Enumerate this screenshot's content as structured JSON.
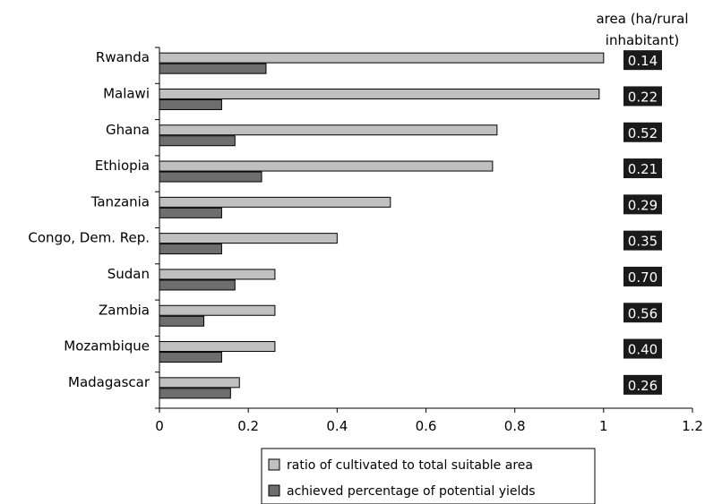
{
  "chart_data": {
    "type": "bar",
    "orientation": "horizontal",
    "categories": [
      "Rwanda",
      "Malawi",
      "Ghana",
      "Ethiopia",
      "Tanzania",
      "Congo, Dem. Rep.",
      "Sudan",
      "Zambia",
      "Mozambique",
      "Madagascar"
    ],
    "series": [
      {
        "name": "ratio of cultivated to total suitable area",
        "color": "#c0c0c0",
        "values": [
          1.0,
          0.99,
          0.76,
          0.75,
          0.52,
          0.4,
          0.26,
          0.26,
          0.26,
          0.18
        ]
      },
      {
        "name": "achieved percentage of potential yields",
        "color": "#6e6e6e",
        "values": [
          0.24,
          0.14,
          0.17,
          0.23,
          0.14,
          0.14,
          0.17,
          0.1,
          0.14,
          0.16
        ]
      }
    ],
    "xlim": [
      0,
      1.2
    ],
    "xticks": [
      "0",
      "0.2",
      "0.4",
      "0.6",
      "0.8",
      "1",
      "1.2"
    ],
    "area_label": [
      "area (ha/rural",
      "inhabitant)"
    ],
    "area_values": [
      "0.14",
      "0.22",
      "0.52",
      "0.21",
      "0.29",
      "0.35",
      "0.70",
      "0.56",
      "0.40",
      "0.26"
    ],
    "legend_position": "bottom"
  }
}
